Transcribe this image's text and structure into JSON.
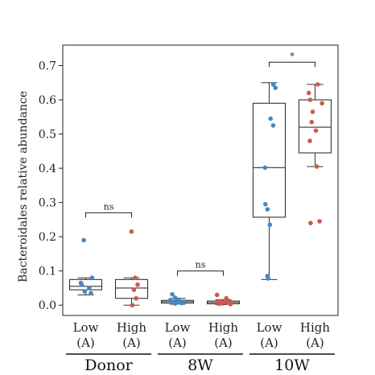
{
  "chart_data": {
    "type": "box",
    "ylabel": "Bacteroidales relative abundance",
    "ylim": [
      -0.03,
      0.76
    ],
    "yticks": [
      0.0,
      0.1,
      0.2,
      0.3,
      0.4,
      0.5,
      0.6,
      0.7
    ],
    "ytick_labels": [
      "0.0",
      "0.1",
      "0.2",
      "0.3",
      "0.4",
      "0.5",
      "0.6",
      "0.7"
    ],
    "colors": {
      "Low": "#4a86c0",
      "High": "#cc5a4f"
    },
    "groups": [
      {
        "name": "Donor",
        "boxes": [
          {
            "label_top": "Low",
            "label_bottom": "(A)",
            "series": "Low",
            "whisker_low": 0.03,
            "q1": 0.045,
            "median": 0.055,
            "q3": 0.075,
            "whisker_high": 0.08,
            "points": [
              0.19,
              0.08,
              0.065,
              0.06,
              0.05,
              0.04,
              0.035
            ]
          },
          {
            "label_top": "High",
            "label_bottom": "(A)",
            "series": "High",
            "whisker_low": 0.0,
            "q1": 0.02,
            "median": 0.05,
            "q3": 0.075,
            "whisker_high": 0.08,
            "points": [
              0.215,
              0.08,
              0.06,
              0.045,
              0.02,
              0.0
            ]
          }
        ],
        "significance": "ns",
        "sig_y": 0.27
      },
      {
        "name": "8W",
        "boxes": [
          {
            "label_top": "Low",
            "label_bottom": "(A)",
            "series": "Low",
            "whisker_low": 0.003,
            "q1": 0.006,
            "median": 0.01,
            "q3": 0.014,
            "whisker_high": 0.02,
            "points": [
              0.032,
              0.022,
              0.016,
              0.014,
              0.012,
              0.011,
              0.01,
              0.009,
              0.008,
              0.007,
              0.006,
              0.005
            ]
          },
          {
            "label_top": "High",
            "label_bottom": "(A)",
            "series": "High",
            "whisker_low": 0.002,
            "q1": 0.004,
            "median": 0.008,
            "q3": 0.012,
            "whisker_high": 0.016,
            "points": [
              0.03,
              0.02,
              0.014,
              0.012,
              0.01,
              0.009,
              0.008,
              0.007,
              0.006,
              0.005,
              0.004,
              0.003
            ]
          }
        ],
        "significance": "ns",
        "sig_y": 0.1
      },
      {
        "name": "10W",
        "boxes": [
          {
            "label_top": "Low",
            "label_bottom": "(A)",
            "series": "Low",
            "whisker_low": 0.075,
            "q1": 0.257,
            "median": 0.402,
            "q3": 0.59,
            "whisker_high": 0.65,
            "points": [
              0.645,
              0.635,
              0.545,
              0.525,
              0.402,
              0.295,
              0.28,
              0.235,
              0.085,
              0.078
            ]
          },
          {
            "label_top": "High",
            "label_bottom": "(A)",
            "series": "High",
            "whisker_low": 0.405,
            "q1": 0.445,
            "median": 0.52,
            "q3": 0.6,
            "whisker_high": 0.645,
            "points": [
              0.645,
              0.62,
              0.6,
              0.59,
              0.565,
              0.535,
              0.51,
              0.48,
              0.405,
              0.245,
              0.24
            ]
          }
        ],
        "significance": "*",
        "sig_y": 0.71
      }
    ]
  }
}
